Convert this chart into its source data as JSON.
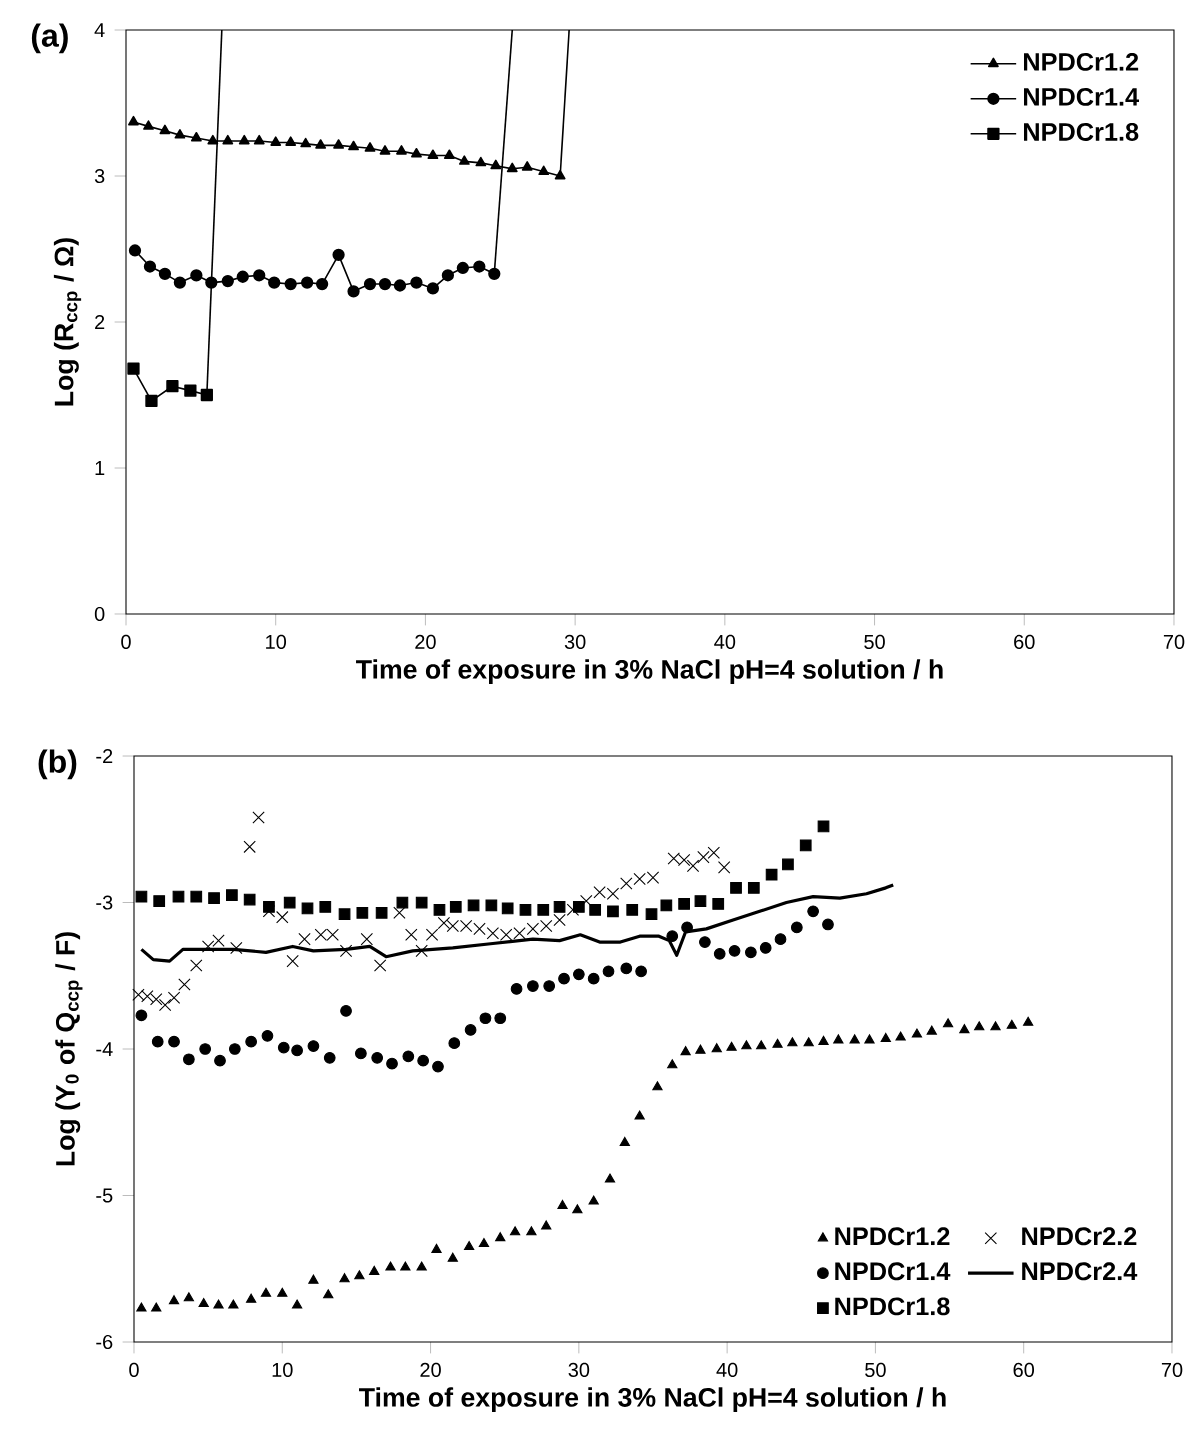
{
  "chart_data": [
    {
      "type": "line",
      "title": "(a)",
      "xlabel": "Time of exposure in 3% NaCl pH=4 solution / h",
      "ylabel": "Log (R$_{ccp}$ / Ω)",
      "xlim": [
        0,
        70
      ],
      "xticks": [
        0,
        10,
        20,
        30,
        40,
        50,
        60,
        70
      ],
      "ylim": [
        0,
        4
      ],
      "yticks": [
        0,
        1,
        2,
        3,
        4
      ],
      "legend": "top right",
      "grid": false,
      "series": [
        {
          "name": "NPDCr1.2",
          "color": "#000000",
          "marker": "triangle",
          "x": [
            0.5,
            1.5,
            2.6,
            3.6,
            4.7,
            5.8,
            6.8,
            7.9,
            8.9,
            10,
            11,
            12,
            13,
            14.2,
            15.2,
            16.3,
            17.3,
            18.4,
            19.4,
            20.5,
            21.6,
            22.6,
            23.7,
            24.7,
            25.8,
            26.8,
            27.9,
            29
          ],
          "values": [
            3.37,
            3.34,
            3.31,
            3.28,
            3.26,
            3.24,
            3.24,
            3.24,
            3.24,
            3.23,
            3.23,
            3.22,
            3.21,
            3.21,
            3.2,
            3.19,
            3.17,
            3.17,
            3.15,
            3.14,
            3.14,
            3.1,
            3.09,
            3.07,
            3.05,
            3.06,
            3.03,
            3.0
          ]
        },
        {
          "name": "NPDCr1.4",
          "color": "#000000",
          "marker": "circle",
          "x": [
            0.6,
            1.6,
            2.6,
            3.6,
            4.7,
            5.7,
            6.8,
            7.8,
            8.9,
            9.9,
            11,
            12.1,
            13.1,
            14.2,
            15.2,
            16.3,
            17.3,
            18.3,
            19.4,
            20.5,
            21.5,
            22.5,
            23.6,
            24.6
          ],
          "values": [
            2.49,
            2.38,
            2.33,
            2.27,
            2.32,
            2.27,
            2.28,
            2.31,
            2.32,
            2.27,
            2.26,
            2.27,
            2.26,
            2.46,
            2.21,
            2.26,
            2.26,
            2.25,
            2.27,
            2.23,
            2.32,
            2.37,
            2.38,
            2.33
          ]
        },
        {
          "name": "NPDCr1.8",
          "color": "#000000",
          "marker": "square",
          "x": [
            0.5,
            1.7,
            3.1,
            4.3,
            5.4
          ],
          "values": [
            1.68,
            1.46,
            1.56,
            1.53,
            1.5
          ]
        },
        {
          "color": "#000000",
          "marker": "none",
          "x": [
            29,
            29.6
          ],
          "values": [
            3.0,
            4
          ]
        },
        {
          "color": "#000000",
          "marker": "none",
          "x": [
            24.6,
            25.8
          ],
          "values": [
            2.33,
            4
          ]
        },
        {
          "color": "#000000",
          "marker": "none",
          "x": [
            5.4,
            6.4
          ],
          "values": [
            1.5,
            4
          ]
        }
      ]
    },
    {
      "type": "scatter",
      "title": "(b)",
      "xlabel": "Time of exposure in 3% NaCl pH=4 solution / h",
      "ylabel": "Log (Y$_{0}$ of Q$_{ccp}$ / F)",
      "xlim": [
        0,
        70
      ],
      "xticks": [
        0,
        10,
        20,
        30,
        40,
        50,
        60,
        70
      ],
      "ylim": [
        -6,
        -2
      ],
      "yticks": [
        -6,
        -5,
        -4,
        -3,
        -2
      ],
      "legend": "bottom right",
      "grid": false,
      "series": [
        {
          "name": "NPDCr1.2",
          "color": "#000000",
          "marker": "triangle",
          "x": [
            0.5,
            1.5,
            2.7,
            3.7,
            4.7,
            5.7,
            6.7,
            7.9,
            8.9,
            10,
            11,
            12.1,
            13.1,
            14.2,
            15.2,
            16.2,
            17.3,
            18.3,
            19.4,
            20.4,
            21.5,
            22.6,
            23.6,
            24.7,
            25.7,
            26.8,
            27.8,
            28.9,
            29.9,
            31,
            32.1,
            33.1,
            34.1,
            35.3,
            36.3,
            37.2,
            38.2,
            39.3,
            40.3,
            41.3,
            42.3,
            43.4,
            44.4,
            45.5,
            46.5,
            47.5,
            48.6,
            49.6,
            50.7,
            51.7,
            52.8,
            53.8,
            54.9,
            56,
            57,
            58.1,
            59.2,
            60.3
          ],
          "values": [
            -5.77,
            -5.77,
            -5.72,
            -5.7,
            -5.74,
            -5.75,
            -5.75,
            -5.71,
            -5.67,
            -5.67,
            -5.75,
            -5.58,
            -5.68,
            -5.57,
            -5.55,
            -5.52,
            -5.49,
            -5.49,
            -5.49,
            -5.37,
            -5.43,
            -5.35,
            -5.33,
            -5.29,
            -5.25,
            -5.25,
            -5.21,
            -5.07,
            -5.1,
            -5.04,
            -4.89,
            -4.64,
            -4.46,
            -4.26,
            -4.11,
            -4.02,
            -4.01,
            -4.0,
            -3.99,
            -3.98,
            -3.98,
            -3.97,
            -3.96,
            -3.96,
            -3.95,
            -3.94,
            -3.94,
            -3.94,
            -3.93,
            -3.92,
            -3.9,
            -3.88,
            -3.83,
            -3.87,
            -3.85,
            -3.85,
            -3.84,
            -3.82
          ]
        },
        {
          "name": "NPDCr2.2",
          "color": "#000000",
          "marker": "cross",
          "x": [
            0.3,
            0.9,
            1.5,
            2.1,
            2.7,
            3.4,
            4.2,
            5,
            5.7,
            6.9,
            7.8,
            8.4,
            9.1,
            10,
            10.7,
            11.5,
            12.6,
            13.4,
            14.3,
            15.7,
            16.6,
            17.9,
            18.7,
            19.4,
            20.1,
            20.9,
            21.5,
            22.4,
            23.3,
            24.2,
            25.1,
            26,
            26.9,
            27.8,
            28.7,
            29.6,
            30.5,
            31.4,
            32.3,
            33.2,
            34.1,
            35,
            36.4,
            37.1,
            37.7,
            38.4,
            39.1,
            39.8
          ],
          "values": [
            -3.63,
            -3.64,
            -3.66,
            -3.7,
            -3.65,
            -3.56,
            -3.43,
            -3.3,
            -3.26,
            -3.31,
            -2.62,
            -2.42,
            -3.06,
            -3.1,
            -3.4,
            -3.25,
            -3.22,
            -3.22,
            -3.33,
            -3.25,
            -3.43,
            -3.07,
            -3.22,
            -3.33,
            -3.22,
            -3.14,
            -3.16,
            -3.16,
            -3.18,
            -3.21,
            -3.22,
            -3.21,
            -3.18,
            -3.16,
            -3.12,
            -3.05,
            -2.99,
            -2.93,
            -2.94,
            -2.87,
            -2.84,
            -2.83,
            -2.7,
            -2.71,
            -2.75,
            -2.69,
            -2.66,
            -2.76
          ]
        },
        {
          "name": "NPDCr1.4",
          "color": "#000000",
          "marker": "circle",
          "x": [
            0.5,
            1.6,
            2.7,
            3.7,
            4.8,
            5.8,
            6.8,
            7.9,
            9,
            10.1,
            11,
            12.1,
            13.2,
            14.3,
            15.3,
            16.4,
            17.4,
            18.5,
            19.5,
            20.5,
            21.6,
            22.7,
            23.7,
            24.7,
            25.8,
            26.9,
            28,
            29,
            30,
            31,
            32,
            33.2,
            34.2,
            36.3,
            37.3,
            38.5,
            39.5,
            40.5,
            41.6,
            42.6,
            43.6,
            44.7,
            45.8,
            46.8
          ],
          "values": [
            -3.77,
            -3.95,
            -3.95,
            -4.07,
            -4.0,
            -4.08,
            -4.0,
            -3.95,
            -3.91,
            -3.99,
            -4.01,
            -3.98,
            -4.06,
            -3.74,
            -4.03,
            -4.06,
            -4.1,
            -4.05,
            -4.08,
            -4.12,
            -3.96,
            -3.87,
            -3.79,
            -3.79,
            -3.59,
            -3.57,
            -3.57,
            -3.52,
            -3.49,
            -3.52,
            -3.47,
            -3.45,
            -3.47,
            -3.23,
            -3.17,
            -3.27,
            -3.35,
            -3.33,
            -3.34,
            -3.31,
            -3.25,
            -3.17,
            -3.06,
            -3.15
          ]
        },
        {
          "name": "NPDCr2.4",
          "type": "line",
          "color": "#000000",
          "marker": "none",
          "x": [
            0.5,
            1.3,
            2.4,
            3.3,
            4.4,
            6.7,
            8.9,
            10.7,
            12.1,
            14.3,
            15.9,
            17,
            18.8,
            21.5,
            24.2,
            26.9,
            28.7,
            30.1,
            31.4,
            32.8,
            34.1,
            35.4,
            36.1,
            36.6,
            37.2,
            38.6,
            40.4,
            42.2,
            44,
            45.8,
            47.6,
            49.4,
            50.7,
            51.2
          ],
          "values": [
            -3.32,
            -3.39,
            -3.4,
            -3.32,
            -3.32,
            -3.32,
            -3.34,
            -3.3,
            -3.33,
            -3.32,
            -3.3,
            -3.37,
            -3.33,
            -3.31,
            -3.28,
            -3.25,
            -3.26,
            -3.22,
            -3.27,
            -3.27,
            -3.23,
            -3.23,
            -3.26,
            -3.36,
            -3.2,
            -3.18,
            -3.12,
            -3.06,
            -3.0,
            -2.96,
            -2.97,
            -2.94,
            -2.9,
            -2.88
          ]
        },
        {
          "name": "NPDCr1.8",
          "color": "#000000",
          "marker": "square",
          "x": [
            0.5,
            1.7,
            3,
            4.2,
            5.4,
            6.6,
            7.8,
            9.1,
            10.5,
            11.7,
            12.9,
            14.2,
            15.4,
            16.7,
            18.1,
            19.4,
            20.6,
            21.7,
            22.9,
            24.1,
            25.2,
            26.4,
            27.6,
            28.7,
            30,
            31.1,
            32.3,
            33.6,
            34.9,
            35.9,
            37.1,
            38.2,
            39.4,
            40.6,
            41.8,
            43,
            44.1,
            45.3,
            46.5
          ],
          "values": [
            -2.96,
            -2.99,
            -2.96,
            -2.96,
            -2.97,
            -2.95,
            -2.98,
            -3.03,
            -3.0,
            -3.04,
            -3.03,
            -3.08,
            -3.07,
            -3.07,
            -3.0,
            -3.0,
            -3.05,
            -3.03,
            -3.02,
            -3.02,
            -3.04,
            -3.05,
            -3.05,
            -3.03,
            -3.03,
            -3.05,
            -3.06,
            -3.05,
            -3.08,
            -3.02,
            -3.01,
            -2.99,
            -3.01,
            -2.9,
            -2.9,
            -2.81,
            -2.74,
            -2.61,
            -2.48
          ]
        }
      ]
    }
  ]
}
